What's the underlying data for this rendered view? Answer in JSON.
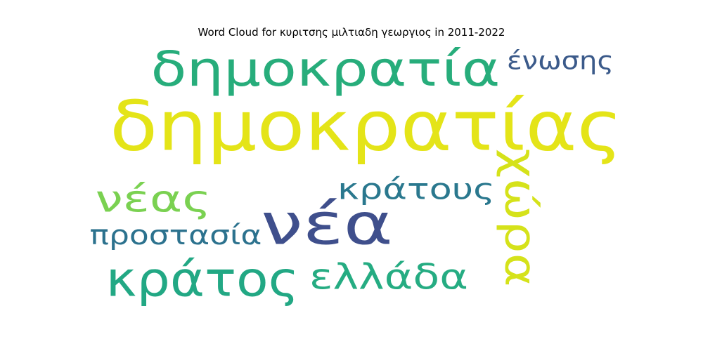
{
  "chart_data": {
    "type": "wordcloud",
    "title": "Word Cloud for κυριτσης μιλτιαδη γεωργιος in 2011-2022",
    "words": [
      {
        "text": "δημοκρατίας",
        "color": "#e4e418",
        "orientation": "horizontal"
      },
      {
        "text": "δημοκρατία",
        "color": "#27ad7b",
        "orientation": "horizontal"
      },
      {
        "text": "νέα",
        "color": "#3f4f8c",
        "orientation": "horizontal"
      },
      {
        "text": "χώρα",
        "color": "#d5e21a",
        "orientation": "vertical"
      },
      {
        "text": "κράτος",
        "color": "#22a884",
        "orientation": "horizontal"
      },
      {
        "text": "νέας",
        "color": "#7ad151",
        "orientation": "horizontal"
      },
      {
        "text": "κράτους",
        "color": "#2a788e",
        "orientation": "horizontal"
      },
      {
        "text": "ελλάδα",
        "color": "#25ac82",
        "orientation": "horizontal"
      },
      {
        "text": "προστασία",
        "color": "#2c728e",
        "orientation": "horizontal"
      },
      {
        "text": "ένωσης",
        "color": "#3b5a8a",
        "orientation": "horizontal"
      }
    ]
  }
}
